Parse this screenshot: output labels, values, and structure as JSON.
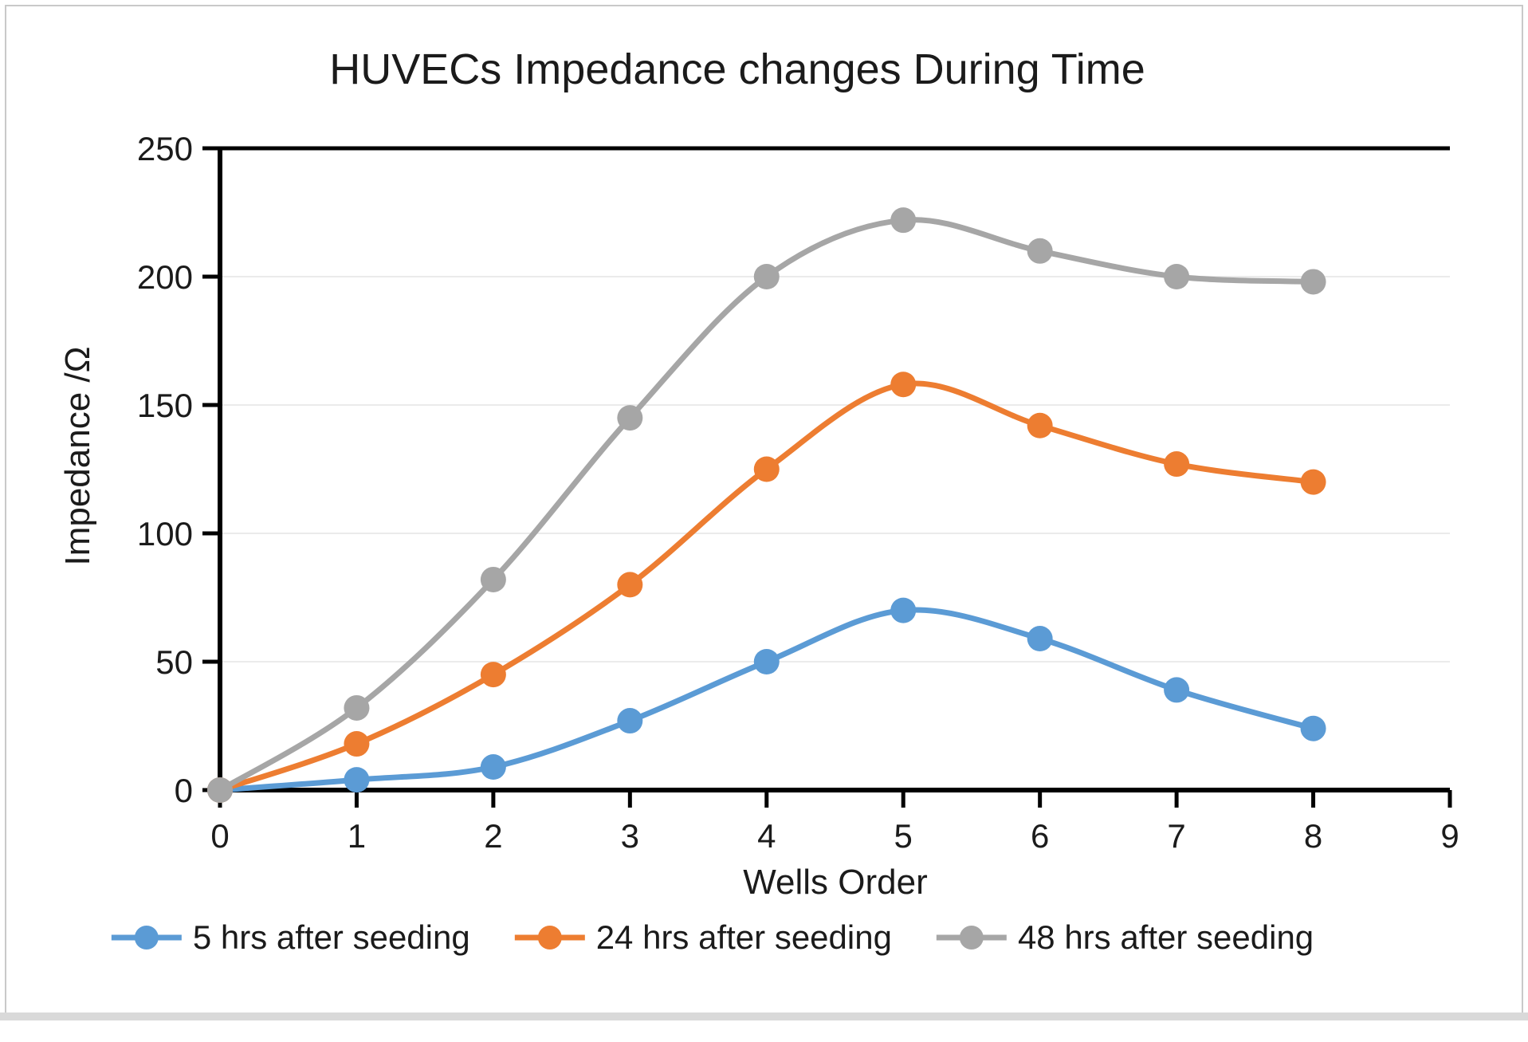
{
  "chart_data": {
    "type": "line",
    "title": "HUVECs Impedance changes During Time",
    "xlabel": "Wells Order",
    "ylabel": "Impedance /Ω",
    "x": [
      0,
      1,
      2,
      3,
      4,
      5,
      6,
      7,
      8
    ],
    "series": [
      {
        "name": "5 hrs after seeding",
        "color": "#5B9BD5",
        "values": [
          0,
          4,
          9,
          27,
          50,
          70,
          59,
          39,
          24
        ]
      },
      {
        "name": "24 hrs after seeding",
        "color": "#ED7D31",
        "values": [
          0,
          18,
          45,
          80,
          125,
          158,
          142,
          127,
          120
        ]
      },
      {
        "name": "48 hrs after seeding",
        "color": "#A6A6A6",
        "values": [
          0,
          32,
          82,
          145,
          200,
          222,
          210,
          200,
          198
        ]
      }
    ],
    "xlim": [
      0,
      9
    ],
    "ylim": [
      0,
      250
    ],
    "x_ticks": [
      0,
      1,
      2,
      3,
      4,
      5,
      6,
      7,
      8,
      9
    ],
    "y_ticks": [
      0,
      50,
      100,
      150,
      200,
      250
    ],
    "grid": "horizontal-light",
    "legend_position": "bottom",
    "smooth": true
  },
  "style": {
    "axis_color": "#000000",
    "grid_color": "#ebebeb",
    "text_color": "#1b1b1b",
    "background": "#ffffff",
    "marker_radius": 16,
    "line_width": 7
  }
}
